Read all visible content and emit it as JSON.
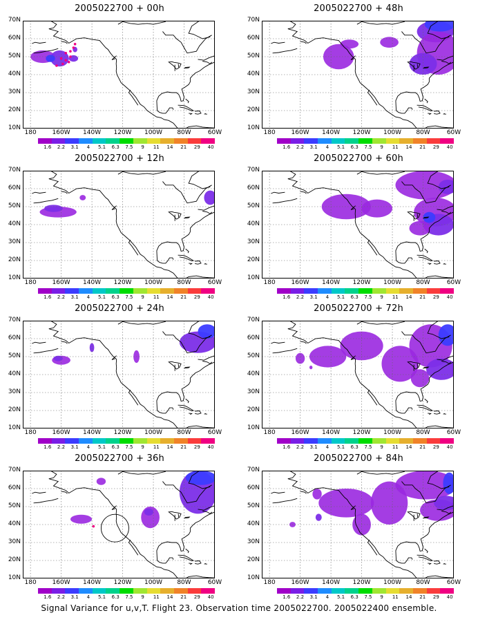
{
  "figure": {
    "footer": "Signal Variance for u,v,T. Flight 23. Observation time 2005022700. 2005022400 ensemble."
  },
  "axes": {
    "lat_labels": [
      "70N",
      "60N",
      "50N",
      "40N",
      "30N",
      "20N",
      "10N"
    ],
    "lon_labels": [
      "180",
      "160W",
      "140W",
      "120W",
      "100W",
      "80W",
      "60W"
    ]
  },
  "colorbar": {
    "labels": [
      "1.6",
      "2.2",
      "3.1",
      "4",
      "5.1",
      "6.3",
      "7.5",
      "9",
      "11",
      "14",
      "21",
      "29",
      "40"
    ],
    "colors": [
      "#a000c8",
      "#7a1ee6",
      "#3c3cff",
      "#1e8cff",
      "#00c8c8",
      "#00d28c",
      "#00dc00",
      "#a0e632",
      "#e6dc32",
      "#e6af2d",
      "#f08228",
      "#fa3c3c",
      "#f00082"
    ]
  },
  "panels": [
    {
      "title": "2005022700 + 00h",
      "forecast_hour": 0
    },
    {
      "title": "2005022700 + 48h",
      "forecast_hour": 48
    },
    {
      "title": "2005022700 + 12h",
      "forecast_hour": 12
    },
    {
      "title": "2005022700 + 60h",
      "forecast_hour": 60
    },
    {
      "title": "2005022700 + 24h",
      "forecast_hour": 24
    },
    {
      "title": "2005022700 + 72h",
      "forecast_hour": 72
    },
    {
      "title": "2005022700 + 36h",
      "forecast_hour": 36
    },
    {
      "title": "2005022700 + 84h",
      "forecast_hour": 84
    }
  ],
  "fill_colors": {
    "low": "#9a28e0",
    "mid": "#7c2ee8",
    "high": "#3c3cff",
    "dot": "#f00082"
  }
}
